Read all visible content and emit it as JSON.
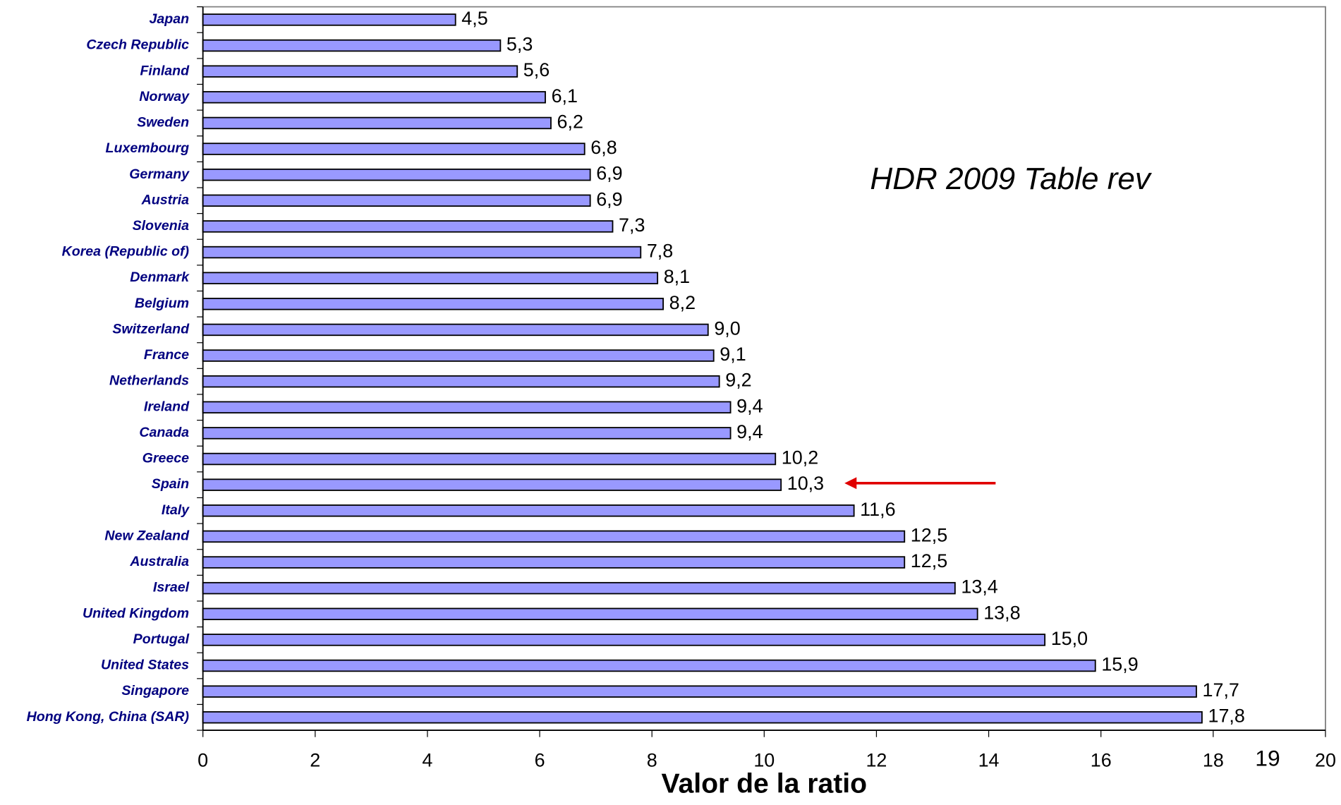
{
  "chart_data": {
    "type": "bar",
    "orientation": "horizontal",
    "categories": [
      "Japan",
      "Czech Republic",
      "Finland",
      "Norway",
      "Sweden",
      "Luxembourg",
      "Germany",
      "Austria",
      "Slovenia",
      "Korea (Republic of)",
      "Denmark",
      "Belgium",
      "Switzerland",
      "France",
      "Netherlands",
      "Ireland",
      "Canada",
      "Greece",
      "Spain",
      "Italy",
      "New Zealand",
      "Australia",
      "Israel",
      "United Kingdom",
      "Portugal",
      "United States",
      "Singapore",
      "Hong Kong, China (SAR)"
    ],
    "values": [
      4.5,
      5.3,
      5.6,
      6.1,
      6.2,
      6.8,
      6.9,
      6.9,
      7.3,
      7.8,
      8.1,
      8.2,
      9.0,
      9.1,
      9.2,
      9.4,
      9.4,
      10.2,
      10.3,
      11.6,
      12.5,
      12.5,
      13.4,
      13.8,
      15.0,
      15.9,
      17.7,
      17.8
    ],
    "value_labels": [
      "4,5",
      "5,3",
      "5,6",
      "6,1",
      "6,2",
      "6,8",
      "6,9",
      "6,9",
      "7,3",
      "7,8",
      "8,1",
      "8,2",
      "9,0",
      "9,1",
      "9,2",
      "9,4",
      "9,4",
      "10,2",
      "10,3",
      "11,6",
      "12,5",
      "12,5",
      "13,4",
      "13,8",
      "15,0",
      "15,9",
      "17,7",
      "17,8"
    ],
    "color": "#9999ff",
    "xlim": [
      0,
      20
    ],
    "xticks": [
      0,
      2,
      4,
      6,
      8,
      10,
      12,
      14,
      16,
      18,
      20
    ],
    "x_label": "Valor de la ratio",
    "annotation": "HDR 2009 Table rev",
    "page_number": "19"
  }
}
